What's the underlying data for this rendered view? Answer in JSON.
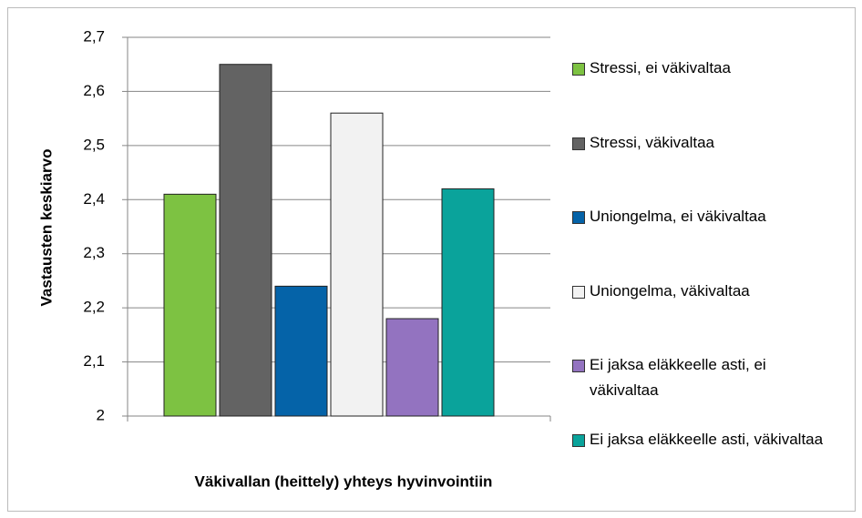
{
  "chart_data": {
    "type": "bar",
    "x_label": "Väkivallan (heittely) yhteys hyvinvointiin",
    "y_label": "Vastausten keskiarvo",
    "categories": [
      null
    ],
    "series": [
      {
        "name": "Stressi, ei väkivaltaa",
        "color": "#7dc242",
        "values": [
          2.41
        ]
      },
      {
        "name": "Stressi, väkivaltaa",
        "color": "#636363",
        "values": [
          2.65
        ]
      },
      {
        "name": "Uniongelma, ei väkivaltaa",
        "color": "#0563a8",
        "values": [
          2.24
        ]
      },
      {
        "name": "Uniongelma, väkivaltaa",
        "color": "#f2f2f2",
        "values": [
          2.56
        ]
      },
      {
        "name": "Ei jaksa eläkkeelle asti, ei väkivaltaa",
        "color": "#9373c0",
        "values": [
          2.18
        ]
      },
      {
        "name": "Ei jaksa eläkkeelle asti, väkivaltaa",
        "color": "#0aa39b",
        "values": [
          2.42
        ]
      }
    ],
    "ylim": [
      2,
      2.7
    ],
    "yticks": [
      2,
      {
        "value": 2.1,
        "label": "2,1"
      },
      {
        "value": 2.2,
        "label": "2,2"
      },
      {
        "value": 2.3,
        "label": "2,3"
      },
      {
        "value": 2.4,
        "label": "2,4"
      },
      {
        "value": 2.5,
        "label": "2,5"
      },
      {
        "value": 2.6,
        "label": "2,6"
      },
      {
        "value": 2.7,
        "label": "2,7"
      }
    ],
    "grid": true,
    "legend": "right"
  }
}
